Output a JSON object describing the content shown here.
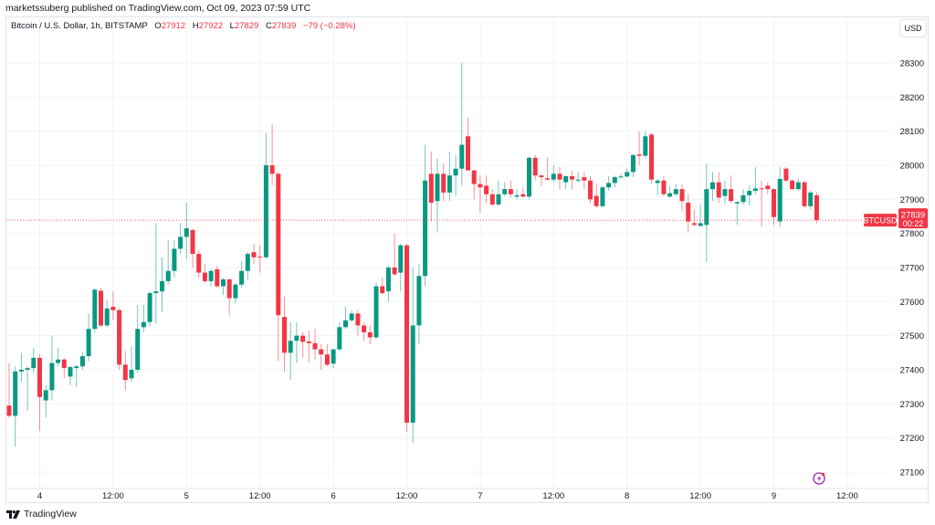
{
  "publisher_line": "marketssuberg published on TradingView.com, Oct 09, 2023 07:59 UTC",
  "legend": {
    "symbol": "Bitcoin / U.S. Dollar, 1h, BITSTAMP",
    "open_label": "O",
    "open": "27912",
    "high_label": "H",
    "high": "27922",
    "low_label": "L",
    "low": "27829",
    "close_label": "C",
    "close": "27839",
    "change": "−79 (−0.28%)"
  },
  "currency_button": "USD",
  "last_price": {
    "symbol_tag": "BTCUSD",
    "price": "27839",
    "countdown": "00:22"
  },
  "footer_logo": "TradingView",
  "icons": {
    "alert": "lightning-bolt-icon",
    "logo": "tradingview-logo-icon"
  },
  "colors": {
    "up": "#089981",
    "down": "#f23645",
    "grid": "#f0f3fa",
    "alert_icon": "#9c27b0"
  },
  "chart_data": {
    "type": "candlestick",
    "title": "Bitcoin / U.S. Dollar, 1h, BITSTAMP",
    "interval": "1h",
    "start": "2023-10-03 19:00",
    "end": "2023-10-09 07:00",
    "ylim": [
      27050,
      28400
    ],
    "y_ticks": [
      27100,
      27200,
      27300,
      27400,
      27500,
      27600,
      27700,
      27800,
      27900,
      28000,
      28100,
      28200,
      28300
    ],
    "x_ticks": [
      {
        "label": "4",
        "hour": 5
      },
      {
        "label": "12:00",
        "hour": 17
      },
      {
        "label": "5",
        "hour": 29
      },
      {
        "label": "12:00",
        "hour": 41
      },
      {
        "label": "6",
        "hour": 53
      },
      {
        "label": "12:00",
        "hour": 65
      },
      {
        "label": "7",
        "hour": 77
      },
      {
        "label": "12:00",
        "hour": 89
      },
      {
        "label": "8",
        "hour": 101
      },
      {
        "label": "12:00",
        "hour": 113
      },
      {
        "label": "9",
        "hour": 125
      },
      {
        "label": "12:00",
        "hour": 137
      }
    ],
    "grid": true,
    "ohlc_fields": [
      "open",
      "high",
      "low",
      "close"
    ],
    "ohlc": [
      [
        27295,
        27420,
        27260,
        27265
      ],
      [
        27265,
        27410,
        27175,
        27395
      ],
      [
        27395,
        27450,
        27365,
        27400
      ],
      [
        27400,
        27410,
        27280,
        27405
      ],
      [
        27405,
        27465,
        27390,
        27435
      ],
      [
        27435,
        27445,
        27220,
        27320
      ],
      [
        27310,
        27355,
        27260,
        27340
      ],
      [
        27340,
        27500,
        27310,
        27420
      ],
      [
        27420,
        27465,
        27410,
        27430
      ],
      [
        27430,
        27435,
        27375,
        27405
      ],
      [
        27380,
        27412,
        27355,
        27408
      ],
      [
        27405,
        27415,
        27350,
        27410
      ],
      [
        27410,
        27450,
        27400,
        27440
      ],
      [
        27440,
        27565,
        27425,
        27520
      ],
      [
        27520,
        27640,
        27510,
        27635
      ],
      [
        27632,
        27640,
        27525,
        27530
      ],
      [
        27530,
        27605,
        27525,
        27580
      ],
      [
        27585,
        27630,
        27545,
        27575
      ],
      [
        27575,
        27580,
        27400,
        27415
      ],
      [
        27415,
        27455,
        27340,
        27370
      ],
      [
        27375,
        27470,
        27365,
        27400
      ],
      [
        27400,
        27590,
        27390,
        27520
      ],
      [
        27525,
        27590,
        27510,
        27540
      ],
      [
        27540,
        27630,
        27525,
        27625
      ],
      [
        27625,
        27830,
        27535,
        27630
      ],
      [
        27630,
        27730,
        27570,
        27660
      ],
      [
        27660,
        27780,
        27650,
        27690
      ],
      [
        27690,
        27780,
        27670,
        27755
      ],
      [
        27755,
        27830,
        27740,
        27790
      ],
      [
        27790,
        27890,
        27725,
        27815
      ],
      [
        27810,
        27815,
        27700,
        27740
      ],
      [
        27740,
        27750,
        27670,
        27685
      ],
      [
        27685,
        27710,
        27655,
        27660
      ],
      [
        27660,
        27695,
        27645,
        27690
      ],
      [
        27695,
        27705,
        27640,
        27645
      ],
      [
        27645,
        27670,
        27620,
        27665
      ],
      [
        27665,
        27668,
        27560,
        27610
      ],
      [
        27610,
        27655,
        27595,
        27650
      ],
      [
        27650,
        27720,
        27640,
        27690
      ],
      [
        27690,
        27745,
        27665,
        27740
      ],
      [
        27745,
        27770,
        27710,
        27730
      ],
      [
        27732,
        27765,
        27685,
        27730
      ],
      [
        27730,
        28095,
        27725,
        28000
      ],
      [
        28000,
        28120,
        27940,
        27975
      ],
      [
        27975,
        27980,
        27425,
        27560
      ],
      [
        27555,
        27615,
        27395,
        27450
      ],
      [
        27450,
        27540,
        27370,
        27485
      ],
      [
        27485,
        27540,
        27420,
        27500
      ],
      [
        27500,
        27510,
        27435,
        27482
      ],
      [
        27483,
        27515,
        27420,
        27478
      ],
      [
        27478,
        27520,
        27430,
        27460
      ],
      [
        27460,
        27475,
        27400,
        27445
      ],
      [
        27445,
        27475,
        27410,
        27415
      ],
      [
        27418,
        27462,
        27405,
        27460
      ],
      [
        27460,
        27540,
        27455,
        27525
      ],
      [
        27525,
        27585,
        27520,
        27545
      ],
      [
        27545,
        27575,
        27540,
        27565
      ],
      [
        27565,
        27575,
        27500,
        27530
      ],
      [
        27530,
        27540,
        27485,
        27510
      ],
      [
        27510,
        27530,
        27475,
        27495
      ],
      [
        27495,
        27655,
        27490,
        27645
      ],
      [
        27645,
        27670,
        27620,
        27625
      ],
      [
        27630,
        27705,
        27600,
        27700
      ],
      [
        27700,
        27800,
        27675,
        27680
      ],
      [
        27685,
        27770,
        27630,
        27765
      ],
      [
        27765,
        27770,
        27218,
        27245
      ],
      [
        27245,
        27700,
        27185,
        27530
      ],
      [
        27530,
        27710,
        27475,
        27675
      ],
      [
        27675,
        28060,
        27645,
        27955
      ],
      [
        27975,
        28040,
        27835,
        27890
      ],
      [
        27895,
        28020,
        27805,
        27975
      ],
      [
        27975,
        28005,
        27895,
        27920
      ],
      [
        27920,
        28040,
        27895,
        27970
      ],
      [
        27970,
        28030,
        27910,
        27990
      ],
      [
        27990,
        28300,
        27940,
        28060
      ],
      [
        28085,
        28140,
        27985,
        27985
      ],
      [
        27985,
        27985,
        27900,
        27945
      ],
      [
        27945,
        27970,
        27860,
        27935
      ],
      [
        27940,
        27970,
        27890,
        27915
      ],
      [
        27915,
        27930,
        27880,
        27885
      ],
      [
        27885,
        27955,
        27880,
        27915
      ],
      [
        27915,
        27950,
        27910,
        27930
      ],
      [
        27930,
        27955,
        27905,
        27915
      ],
      [
        27908,
        27930,
        27900,
        27912
      ],
      [
        27915,
        27935,
        27905,
        27908
      ],
      [
        27908,
        28025,
        27900,
        28022
      ],
      [
        28022,
        28030,
        27955,
        27970
      ],
      [
        27970,
        27975,
        27940,
        27965
      ],
      [
        27962,
        28022,
        27955,
        27958
      ],
      [
        27958,
        28000,
        27950,
        27975
      ],
      [
        27975,
        27995,
        27930,
        27958
      ],
      [
        27950,
        27970,
        27930,
        27968
      ],
      [
        27968,
        27985,
        27928,
        27958
      ],
      [
        27955,
        27980,
        27948,
        27958
      ],
      [
        27965,
        27980,
        27930,
        27955
      ],
      [
        27955,
        27968,
        27888,
        27900
      ],
      [
        27910,
        27945,
        27875,
        27880
      ],
      [
        27880,
        27940,
        27875,
        27935
      ],
      [
        27935,
        27968,
        27925,
        27948
      ],
      [
        27948,
        27970,
        27935,
        27965
      ],
      [
        27965,
        27975,
        27960,
        27967
      ],
      [
        27967,
        27990,
        27965,
        27980
      ],
      [
        27980,
        28032,
        27965,
        28030
      ],
      [
        28032,
        28100,
        28000,
        28028
      ],
      [
        28028,
        28100,
        28020,
        28085
      ],
      [
        28090,
        28095,
        27945,
        27958
      ],
      [
        27948,
        27960,
        27910,
        27955
      ],
      [
        27955,
        27968,
        27910,
        27915
      ],
      [
        27908,
        27940,
        27905,
        27918
      ],
      [
        27915,
        27945,
        27910,
        27930
      ],
      [
        27930,
        27945,
        27865,
        27895
      ],
      [
        27890,
        27915,
        27805,
        27835
      ],
      [
        27830,
        27870,
        27820,
        27825
      ],
      [
        27822,
        27885,
        27820,
        27830
      ],
      [
        27825,
        28005,
        27715,
        27930
      ],
      [
        27930,
        27980,
        27895,
        27950
      ],
      [
        27950,
        27980,
        27890,
        27905
      ],
      [
        27910,
        27955,
        27888,
        27930
      ],
      [
        27930,
        27970,
        27890,
        27895
      ],
      [
        27888,
        27895,
        27825,
        27892
      ],
      [
        27892,
        27930,
        27885,
        27912
      ],
      [
        27912,
        27940,
        27882,
        27925
      ],
      [
        27925,
        27995,
        27915,
        27932
      ],
      [
        27932,
        27955,
        27820,
        27930
      ],
      [
        27940,
        27950,
        27915,
        27930
      ],
      [
        27930,
        27932,
        27825,
        27848
      ],
      [
        27835,
        27995,
        27818,
        27960
      ],
      [
        27990,
        27995,
        27950,
        27955
      ],
      [
        27955,
        27960,
        27928,
        27930
      ],
      [
        27930,
        27960,
        27925,
        27950
      ],
      [
        27950,
        27955,
        27875,
        27880
      ],
      [
        27880,
        27925,
        27870,
        27920
      ],
      [
        27912,
        27922,
        27829,
        27839
      ]
    ],
    "last_price": 27839
  }
}
